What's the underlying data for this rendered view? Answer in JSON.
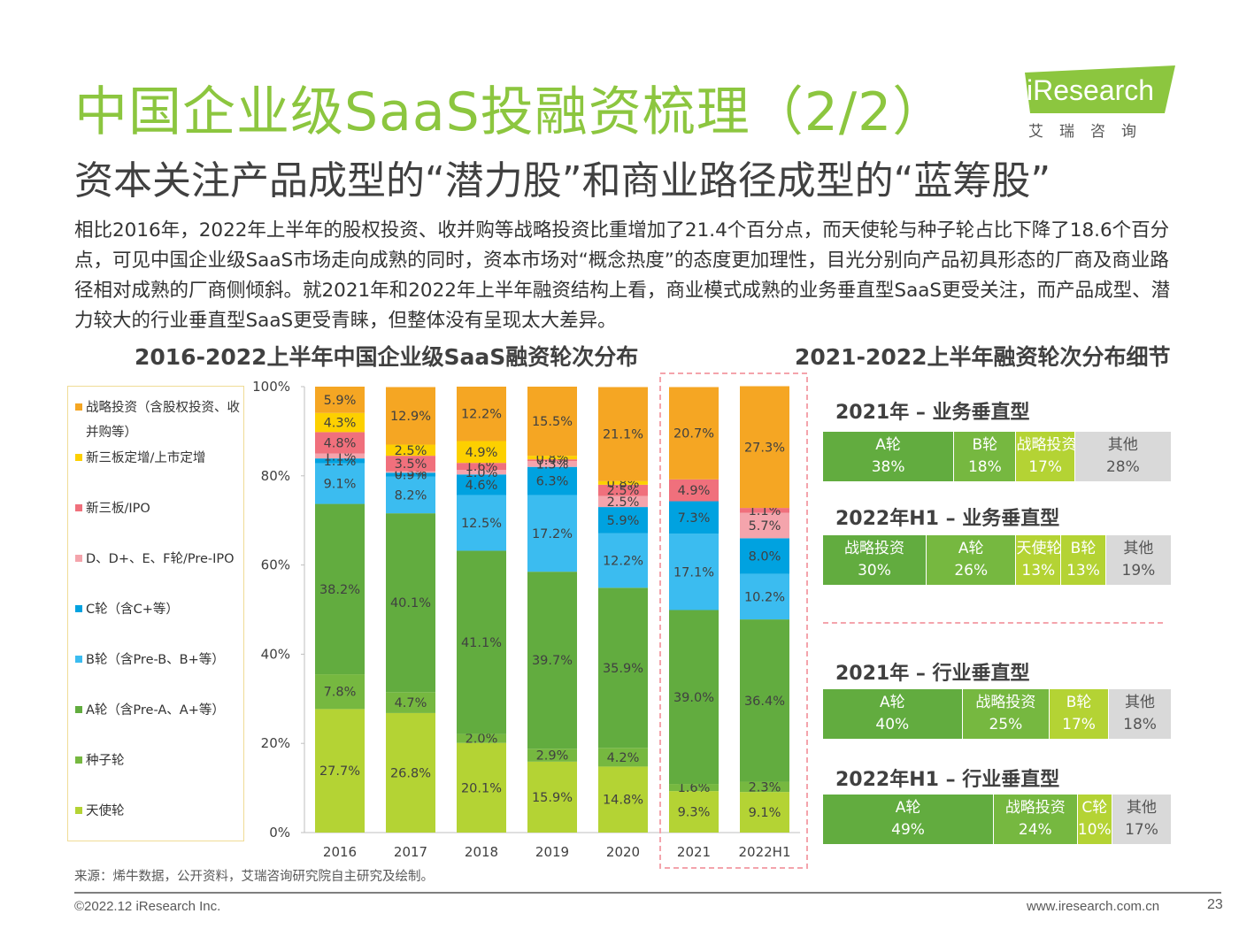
{
  "header": {
    "title": "中国企业级SaaS投融资梳理（2/2）",
    "subtitle": "资本关注产品成型的“潜力股”和商业路径成型的“蓝筹股”",
    "logo_text": "iResearch",
    "logo_cn": "艾瑞咨询"
  },
  "intro": "相比2016年，2022年上半年的股权投资、收并购等战略投资比重增加了21.4个百分点，而天使轮与种子轮占比下降了18.6个百分点，可见中国企业级SaaS市场走向成熟的同时，资本市场对“概念热度”的态度更加理性，目光分别向产品初具形态的厂商及商业路径相对成熟的厂商侧倾斜。就2021年和2022年上半年融资结构上看，商业模式成熟的业务垂直型SaaS更受关注，而产品成型、潜力较大的行业垂直型SaaS更受青睐，但整体没有呈现太大差异。",
  "colors": {
    "title_green": "#8cc63f",
    "strategic": "#f5a623",
    "neeq_add": "#fdd000",
    "neeq_ipo": "#f0707c",
    "series_d": "#f4a4ac",
    "series_c": "#00a2e0",
    "series_b": "#3bbcf0",
    "series_a": "#62ac3f",
    "seed": "#76b840",
    "angel": "#b4d334",
    "other": "#d9d9d9",
    "highlight_border": "#f4a4ac"
  },
  "legend": {
    "items": [
      {
        "label": "战略投资（含股权投资、收并购等）",
        "color": "#f5a623"
      },
      {
        "label": "新三板定增/上市定增",
        "color": "#fdd000"
      },
      {
        "label": "新三板/IPO",
        "color": "#f0707c"
      },
      {
        "label": "D、D+、E、F轮/Pre-IPO",
        "color": "#f4a4ac"
      },
      {
        "label": "C轮（含C+等）",
        "color": "#00a2e0"
      },
      {
        "label": "B轮（含Pre-B、B+等）",
        "color": "#3bbcf0"
      },
      {
        "label": "A轮（含Pre-A、A+等）",
        "color": "#62ac3f"
      },
      {
        "label": "种子轮",
        "color": "#76b840"
      },
      {
        "label": "天使轮",
        "color": "#b4d334"
      }
    ]
  },
  "chart_data": {
    "type": "bar",
    "stacked": true,
    "title": "2016-2022上半年中国企业级SaaS融资轮次分布",
    "categories": [
      "2016",
      "2017",
      "2018",
      "2019",
      "2020",
      "2021",
      "2022H1"
    ],
    "y_ticks": [
      "0%",
      "20%",
      "40%",
      "60%",
      "80%",
      "100%"
    ],
    "ylim": [
      0,
      100
    ],
    "highlighted_categories": [
      "2021",
      "2022H1"
    ],
    "series": [
      {
        "name": "天使轮",
        "color": "#b4d334",
        "values": [
          27.7,
          26.8,
          20.1,
          15.9,
          14.8,
          9.3,
          9.1
        ]
      },
      {
        "name": "种子轮",
        "color": "#76b840",
        "values": [
          7.8,
          4.7,
          2.0,
          2.9,
          4.2,
          1.6,
          2.3
        ]
      },
      {
        "name": "A轮（含Pre-A、A+等）",
        "color": "#62ac3f",
        "values": [
          38.2,
          40.1,
          41.1,
          39.7,
          35.9,
          39.0,
          36.4
        ]
      },
      {
        "name": "B轮（含Pre-B、B+等）",
        "color": "#3bbcf0",
        "values": [
          9.1,
          8.2,
          12.5,
          17.2,
          12.2,
          17.1,
          10.2
        ]
      },
      {
        "name": "C轮（含C+等）",
        "color": "#00a2e0",
        "values": [
          1.1,
          0.9,
          4.6,
          6.3,
          5.9,
          7.3,
          8.0
        ]
      },
      {
        "name": "D、D+、E、F轮/Pre-IPO",
        "color": "#f4a4ac",
        "values": [
          1.1,
          0.3,
          1.0,
          1.3,
          2.5,
          0,
          5.7
        ]
      },
      {
        "name": "新三板/IPO",
        "color": "#f0707c",
        "values": [
          4.8,
          3.5,
          1.6,
          0.4,
          2.5,
          4.9,
          1.1
        ]
      },
      {
        "name": "新三板定增/上市定增",
        "color": "#fdd000",
        "values": [
          4.3,
          2.5,
          4.9,
          0.8,
          0.8,
          0,
          0
        ]
      },
      {
        "name": "战略投资（含股权投资、收并购等）",
        "color": "#f5a623",
        "values": [
          5.9,
          12.9,
          12.2,
          15.5,
          21.1,
          20.7,
          27.3
        ]
      }
    ]
  },
  "detail": {
    "title": "2021-2022上半年融资轮次分布细节",
    "groups": [
      {
        "title": "2021年 – 业务垂直型",
        "segments": [
          {
            "label": "A轮",
            "value": 38,
            "text": "38%",
            "color": "#62ac3f"
          },
          {
            "label": "B轮",
            "value": 18,
            "text": "18%",
            "color": "#76b840"
          },
          {
            "label": "战略投资",
            "value": 17,
            "text": "17%",
            "color": "#b4d334"
          },
          {
            "label": "其他",
            "value": 28,
            "text": "28%",
            "color": "#d9d9d9"
          }
        ]
      },
      {
        "title": "2022年H1 – 业务垂直型",
        "segments": [
          {
            "label": "战略投资",
            "value": 30,
            "text": "30%",
            "color": "#62ac3f"
          },
          {
            "label": "A轮",
            "value": 26,
            "text": "26%",
            "color": "#76b840"
          },
          {
            "label": "天使轮",
            "value": 13,
            "text": "13%",
            "color": "#b4d334"
          },
          {
            "label": "B轮",
            "value": 13,
            "text": "13%",
            "color": "#b4d334"
          },
          {
            "label": "其他",
            "value": 19,
            "text": "19%",
            "color": "#d9d9d9"
          }
        ]
      },
      {
        "title": "2021年 – 行业垂直型",
        "segments": [
          {
            "label": "A轮",
            "value": 40,
            "text": "40%",
            "color": "#62ac3f"
          },
          {
            "label": "战略投资",
            "value": 25,
            "text": "25%",
            "color": "#76b840"
          },
          {
            "label": "B轮",
            "value": 17,
            "text": "17%",
            "color": "#b4d334"
          },
          {
            "label": "其他",
            "value": 18,
            "text": "18%",
            "color": "#d9d9d9"
          }
        ]
      },
      {
        "title": "2022年H1 – 行业垂直型",
        "segments": [
          {
            "label": "A轮",
            "value": 49,
            "text": "49%",
            "color": "#62ac3f"
          },
          {
            "label": "战略投资",
            "value": 24,
            "text": "24%",
            "color": "#76b840"
          },
          {
            "label": "C轮",
            "value": 10,
            "text": "10%",
            "color": "#b4d334"
          },
          {
            "label": "其他",
            "value": 17,
            "text": "17%",
            "color": "#d9d9d9"
          }
        ]
      }
    ]
  },
  "source": "来源：烯牛数据，公开资料，艾瑞咨询研究院自主研究及绘制。",
  "footer": {
    "copyright": "©2022.12 iResearch Inc.",
    "website": "www.iresearch.com.cn",
    "page": "23"
  }
}
